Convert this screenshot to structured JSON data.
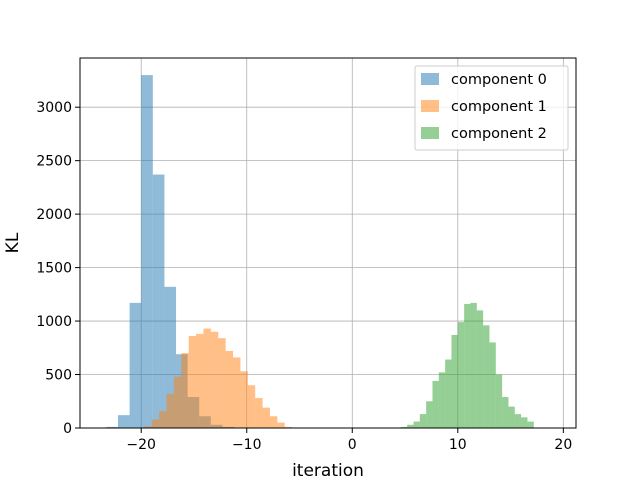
{
  "chart_data": {
    "type": "bar",
    "title": "",
    "xlabel": "iteration",
    "ylabel": "KL",
    "xlim": [
      -25.8,
      21.2
    ],
    "ylim": [
      0,
      3460
    ],
    "xticks": [
      -20,
      -10,
      0,
      10,
      20
    ],
    "xtick_labels": [
      "−20",
      "−10",
      "0",
      "10",
      "20"
    ],
    "yticks": [
      0,
      500,
      1000,
      1500,
      2000,
      2500,
      3000
    ],
    "ytick_labels": [
      "0",
      "500",
      "1000",
      "1500",
      "2000",
      "2500",
      "3000"
    ],
    "grid": true,
    "legend_position": "top-right",
    "series": [
      {
        "name": "component 0",
        "color": "#1f77b4",
        "alpha": 0.5,
        "bins": [
          [
            -23.3,
            -22.2,
            10
          ],
          [
            -22.2,
            -21.1,
            120
          ],
          [
            -21.1,
            -20.0,
            1170
          ],
          [
            -20.0,
            -18.9,
            3300
          ],
          [
            -18.9,
            -17.8,
            2370
          ],
          [
            -17.8,
            -16.7,
            1320
          ],
          [
            -16.7,
            -15.6,
            690
          ],
          [
            -15.6,
            -14.5,
            290
          ],
          [
            -14.5,
            -13.4,
            110
          ],
          [
            -13.4,
            -12.3,
            30
          ],
          [
            -12.3,
            -11.2,
            10
          ]
        ]
      },
      {
        "name": "component 1",
        "color": "#ff7f0e",
        "alpha": 0.5,
        "bins": [
          [
            -20.4,
            -19.7,
            5
          ],
          [
            -19.7,
            -19.0,
            15
          ],
          [
            -19.0,
            -18.3,
            80
          ],
          [
            -18.3,
            -17.6,
            160
          ],
          [
            -17.6,
            -16.9,
            320
          ],
          [
            -16.9,
            -16.2,
            480
          ],
          [
            -16.2,
            -15.5,
            700
          ],
          [
            -15.5,
            -14.8,
            860
          ],
          [
            -14.8,
            -14.1,
            880
          ],
          [
            -14.1,
            -13.4,
            930
          ],
          [
            -13.4,
            -12.7,
            900
          ],
          [
            -12.7,
            -12.0,
            840
          ],
          [
            -12.0,
            -11.3,
            720
          ],
          [
            -11.3,
            -10.6,
            660
          ],
          [
            -10.6,
            -9.9,
            530
          ],
          [
            -9.9,
            -9.2,
            400
          ],
          [
            -9.2,
            -8.5,
            280
          ],
          [
            -8.5,
            -7.8,
            190
          ],
          [
            -7.8,
            -7.1,
            110
          ],
          [
            -7.1,
            -6.4,
            50
          ],
          [
            -6.4,
            -5.7,
            10
          ]
        ]
      },
      {
        "name": "component 2",
        "color": "#2ca02c",
        "alpha": 0.5,
        "bins": [
          [
            4.6,
            5.2,
            10
          ],
          [
            5.2,
            5.8,
            30
          ],
          [
            5.8,
            6.4,
            60
          ],
          [
            6.4,
            7.0,
            130
          ],
          [
            7.0,
            7.6,
            250
          ],
          [
            7.6,
            8.2,
            440
          ],
          [
            8.2,
            8.8,
            520
          ],
          [
            8.8,
            9.4,
            640
          ],
          [
            9.4,
            10.0,
            870
          ],
          [
            10.0,
            10.6,
            990
          ],
          [
            10.6,
            11.2,
            1160
          ],
          [
            11.2,
            11.8,
            1170
          ],
          [
            11.8,
            12.4,
            1100
          ],
          [
            12.4,
            13.0,
            960
          ],
          [
            13.0,
            13.6,
            800
          ],
          [
            13.6,
            14.2,
            500
          ],
          [
            14.2,
            14.8,
            290
          ],
          [
            14.8,
            15.4,
            200
          ],
          [
            15.4,
            16.0,
            130
          ],
          [
            16.0,
            16.6,
            100
          ],
          [
            16.6,
            17.2,
            60
          ]
        ]
      }
    ]
  }
}
